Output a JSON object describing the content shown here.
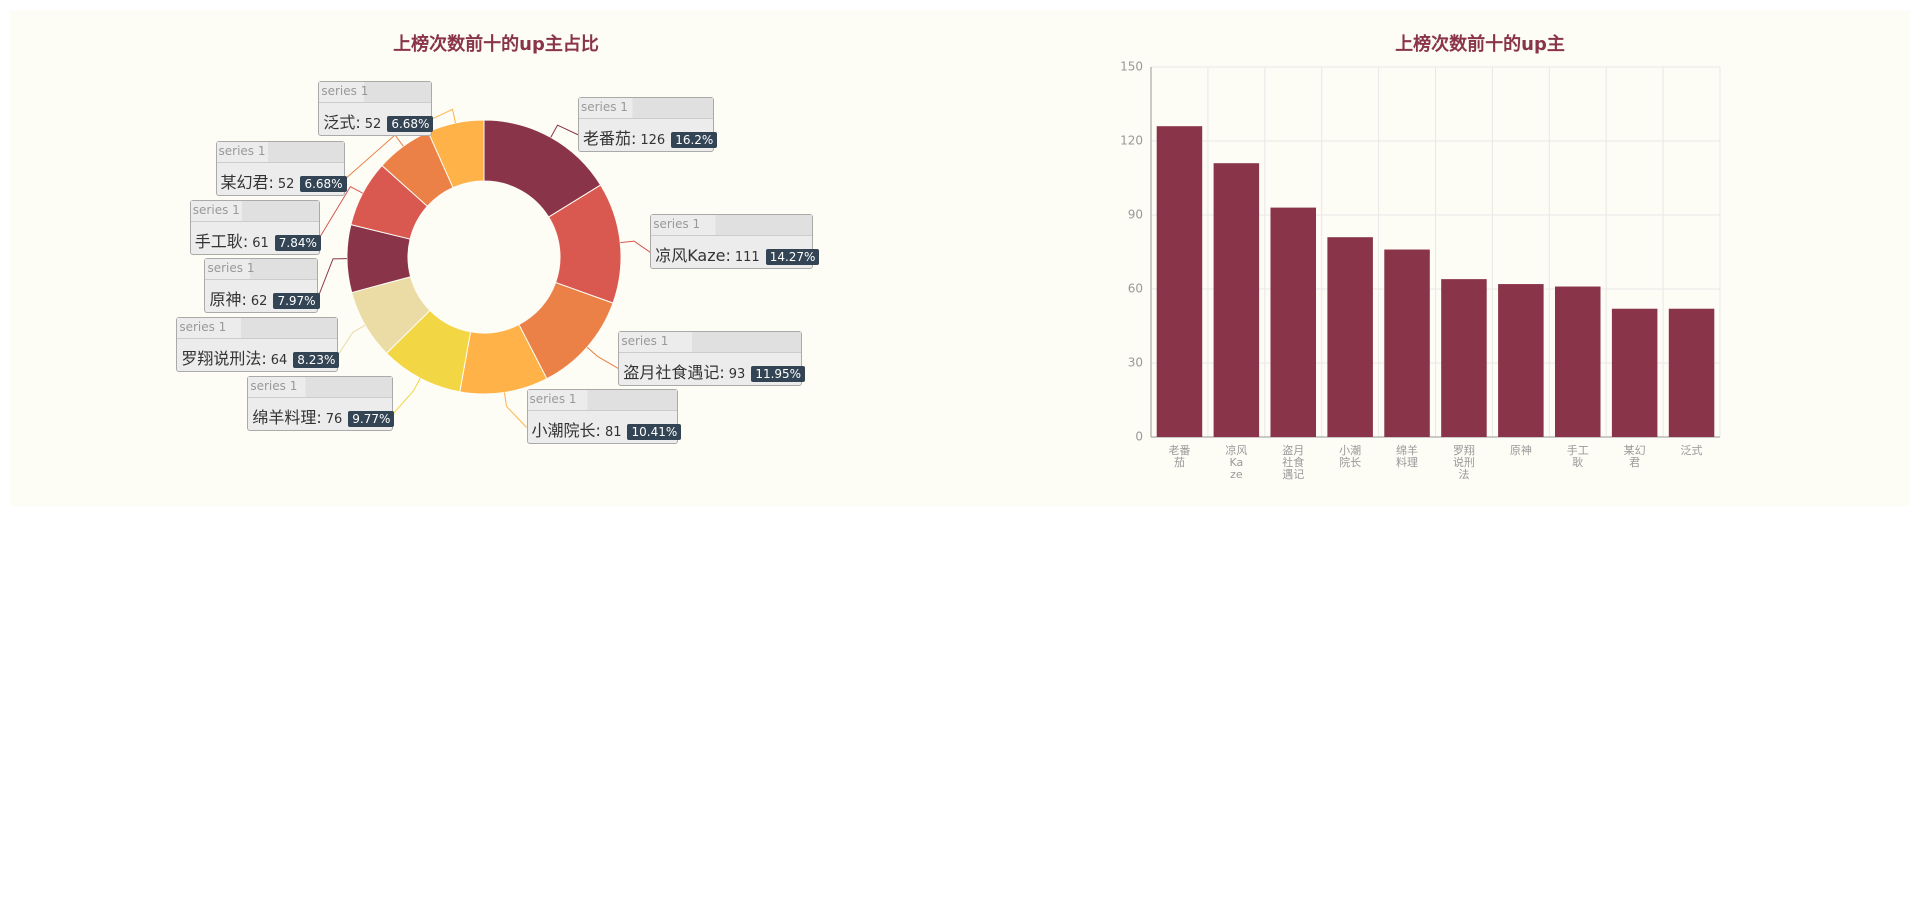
{
  "chart_data": [
    {
      "type": "pie",
      "title": "上榜次数前十的up主占比",
      "series_name": "series 1",
      "categories": [
        "老番茄",
        "凉风Kaze",
        "盗月社食遇记",
        "小潮院长",
        "绵羊料理",
        "罗翔说刑法",
        "原神",
        "手工耿",
        "某幻君",
        "泛式"
      ],
      "values": [
        126,
        111,
        93,
        81,
        76,
        64,
        62,
        61,
        52,
        52
      ],
      "value_labels": [
        "16.2%",
        "14.27%",
        "11.95%",
        "10.41%",
        "9.77%",
        "8.23%",
        "7.97%",
        "7.84%",
        "6.68%",
        "6.68%"
      ],
      "colors": [
        "#893448",
        "#d95850",
        "#eb8146",
        "#ffb248",
        "#f2d643",
        "#ebdba4",
        "#893448",
        "#d95850",
        "#eb8146",
        "#ffb248"
      ]
    },
    {
      "type": "bar",
      "title": "上榜次数前十的up主",
      "categories": [
        "老番茄",
        "凉风Kaze",
        "盗月社食遇记",
        "小潮院长",
        "绵羊料理",
        "罗翔说刑法",
        "原神",
        "手工耿",
        "某幻君",
        "泛式"
      ],
      "values": [
        126,
        111,
        93,
        81,
        76,
        64,
        62,
        61,
        52,
        52
      ],
      "color": "#893448",
      "ylim": [
        0,
        150
      ],
      "yticks": [
        0,
        30,
        60,
        90,
        120,
        150
      ],
      "grid": true
    }
  ]
}
